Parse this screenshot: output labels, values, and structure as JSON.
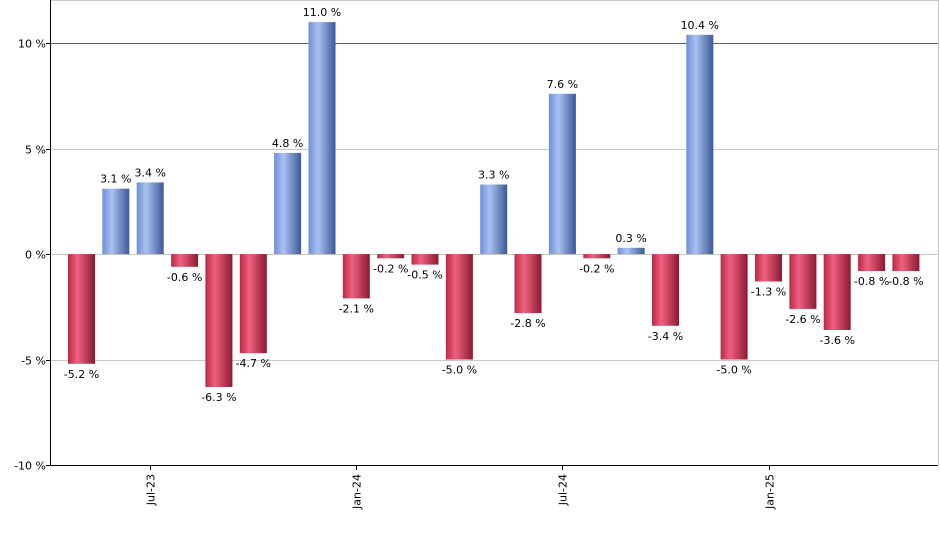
{
  "chart_data": {
    "type": "bar",
    "title": "",
    "xlabel": "",
    "ylabel": "",
    "ylim": [
      -10,
      12
    ],
    "y_ticks": [
      {
        "value": -10,
        "label": "-10 %"
      },
      {
        "value": -5,
        "label": "-5 %"
      },
      {
        "value": 0,
        "label": "0 %"
      },
      {
        "value": 5,
        "label": "5 %"
      },
      {
        "value": 10,
        "label": "10 %"
      }
    ],
    "x_ticks": [
      {
        "index": 2,
        "label": "Jul-23"
      },
      {
        "index": 8,
        "label": "Jan-24"
      },
      {
        "index": 14,
        "label": "Jul-24"
      },
      {
        "index": 20,
        "label": "Jan-25"
      }
    ],
    "values": [
      -5.2,
      3.1,
      3.4,
      -0.6,
      -6.3,
      -4.7,
      4.8,
      11.0,
      -2.1,
      -0.2,
      -0.5,
      -5.0,
      3.3,
      -2.8,
      7.6,
      -0.2,
      0.3,
      -3.4,
      10.4,
      -5.0,
      -1.3,
      -2.6,
      -3.6,
      -0.8,
      -0.8
    ],
    "data_labels": [
      "-5.2 %",
      "3.1 %",
      "3.4 %",
      "-0.6 %",
      "-6.3 %",
      "-4.7 %",
      "4.8 %",
      "11.0 %",
      "-2.1 %",
      "-0.2 %",
      "-0.5 %",
      "-5.0 %",
      "3.3 %",
      "-2.8 %",
      "7.6 %",
      "-0.2 %",
      "0.3 %",
      "-3.4 %",
      "10.4 %",
      "-5.0 %",
      "-1.3 %",
      "-2.6 %",
      "-3.6 %",
      "-0.8 %",
      "-0.8 %"
    ],
    "reference_line": 10,
    "grid": true,
    "colors": {
      "positive": "#8aa4e0",
      "negative": "#d23a58",
      "reference_line": "#2e7d32",
      "grid": "#c8c8c8"
    }
  }
}
